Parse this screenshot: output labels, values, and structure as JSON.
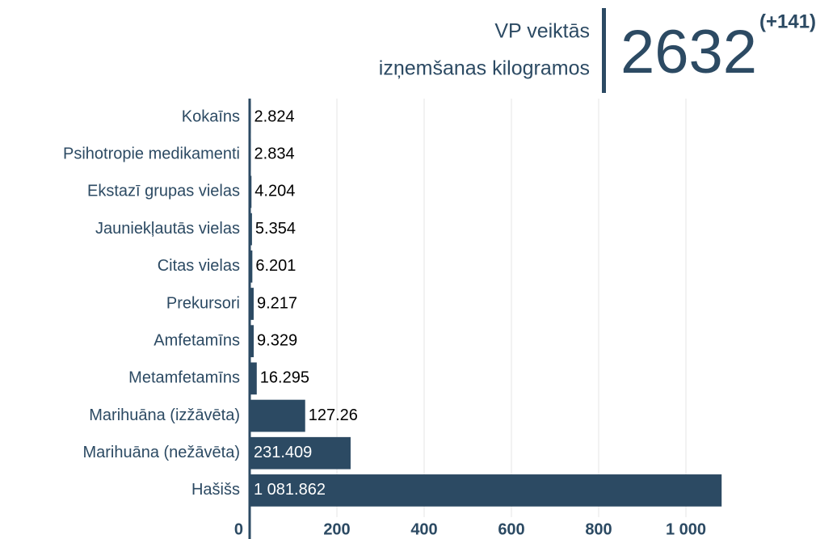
{
  "chart_data": {
    "type": "barh",
    "title_lines": [
      "VP veiktās",
      "izņemšanas kilogramos"
    ],
    "total": "2632",
    "change": "(+141)",
    "categories": [
      "Kokaīns",
      "Psihotropie medikamenti",
      "Ekstazī grupas vielas",
      "Jauniekļautās vielas",
      "Citas vielas",
      "Prekursori",
      "Amfetamīns",
      "Metamfetamīns",
      "Marihuāna (izžāvēta)",
      "Marihuāna (nežāvēta)",
      "Hašišs"
    ],
    "values": [
      2.824,
      2.834,
      4.204,
      5.354,
      6.201,
      9.217,
      9.329,
      16.295,
      127.26,
      231.409,
      1081.862
    ],
    "value_labels": [
      "2.824",
      "2.834",
      "4.204",
      "5.354",
      "6.201",
      "9.217",
      "9.329",
      "16.295",
      "127.26",
      "231.409",
      "1 081.862"
    ],
    "color": "#2c4a63",
    "xlim": [
      0,
      1200
    ],
    "xticks": [
      0,
      200,
      400,
      600,
      800,
      {
        "value": 1000,
        "label": "1 000"
      }
    ],
    "grid": true
  }
}
